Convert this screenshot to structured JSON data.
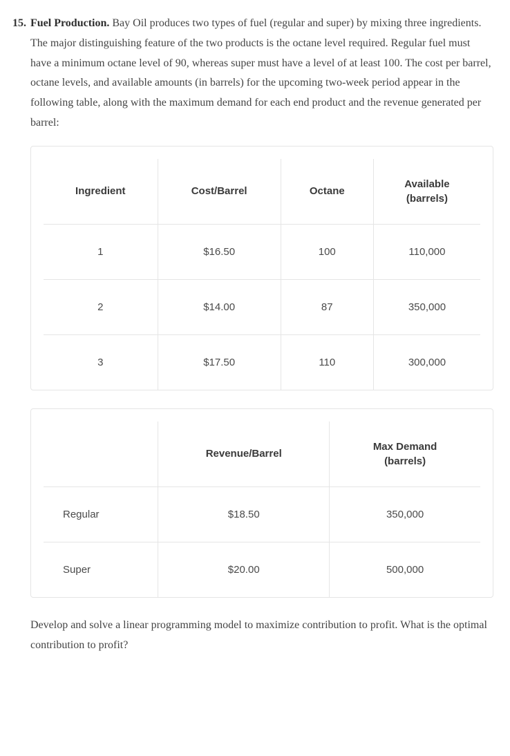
{
  "problem": {
    "number": "15.",
    "title": "Fuel Production.",
    "intro": "Bay Oil produces two types of fuel (regular and super) by mixing three ingredients. The major distinguishing feature of the two products is the octane level required. Regular fuel must have a minimum octane level of 90, whereas super must have a level of at least 100. The cost per barrel, octane levels, and available amounts (in barrels) for the upcoming two-week period appear in the following table, along with the maximum demand for each end product and the revenue generated per barrel:",
    "closing": "Develop and solve a linear programming model to maximize contribution to profit. What is the optimal contribution to profit?"
  },
  "table1": {
    "columns": [
      "Ingredient",
      "Cost/Barrel",
      "Octane",
      "Available\n(barrels)"
    ],
    "rows": [
      [
        "1",
        "$16.50",
        "100",
        "110,000"
      ],
      [
        "2",
        "$14.00",
        "87",
        "350,000"
      ],
      [
        "3",
        "$17.50",
        "110",
        "300,000"
      ]
    ]
  },
  "table2": {
    "columns": [
      "",
      "Revenue/Barrel",
      "Max Demand\n(barrels)"
    ],
    "rows": [
      [
        "Regular",
        "$18.50",
        "350,000"
      ],
      [
        "Super",
        "$20.00",
        "500,000"
      ]
    ]
  },
  "style": {
    "border_color": "#e5e5e5",
    "text_color": "#3c3c3c",
    "header_weight": 700,
    "body_font": "Georgia",
    "table_font": "Helvetica Neue"
  }
}
